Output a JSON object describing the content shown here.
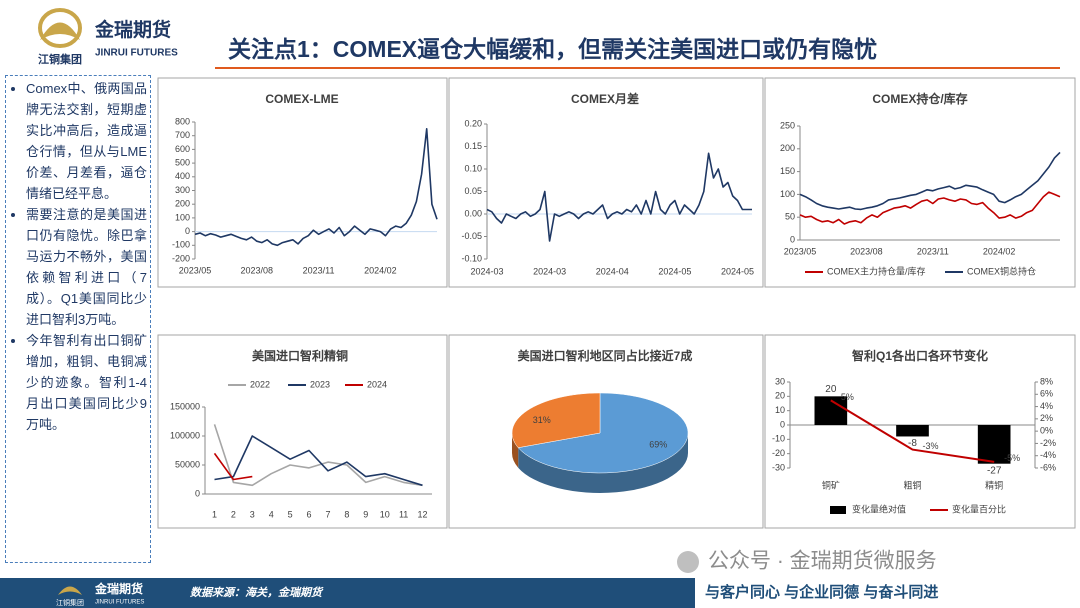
{
  "header": {
    "brand": "金瑞期货",
    "brand_en": "JINRUI FUTURES",
    "group": "江铜集团",
    "title": "关注点1：COMEX逼仓大幅缓和，但需关注美国进口或仍有隐忧"
  },
  "sidebar": {
    "bullets": [
      "Comex中、俄两国品牌无法交割，短期虚实比冲高后，造成逼仓行情，但从与LME价差、月差看，逼仓情绪已经平息。",
      "需要注意的是美国进口仍有隐忧。除巴拿马运力不畅外，美国依赖智利进口（7成）。Q1美国同比少进口智利3万吨。",
      "今年智利有出口铜矿增加，粗铜、电铜减少的迹象。智利1-4月出口美国同比少9万吨。"
    ]
  },
  "chart_data": [
    {
      "type": "line",
      "title": "COMEX-LME",
      "categories": [
        "2023/05",
        null,
        null,
        null,
        null,
        null,
        null,
        null,
        null,
        null,
        null,
        null,
        "2023/08",
        null,
        null,
        null,
        null,
        null,
        null,
        null,
        null,
        null,
        null,
        null,
        "2023/11",
        null,
        null,
        null,
        null,
        null,
        null,
        null,
        null,
        null,
        null,
        null,
        "2024/02",
        null,
        null,
        null,
        null,
        null,
        null,
        null,
        null,
        null,
        null,
        null
      ],
      "series": [
        {
          "color": "#1f3864",
          "values": [
            -20,
            -10,
            -30,
            -15,
            -25,
            -40,
            -30,
            -20,
            -35,
            -50,
            -60,
            -40,
            -70,
            -80,
            -60,
            -90,
            -100,
            -80,
            -70,
            -60,
            -90,
            -50,
            -30,
            10,
            -20,
            0,
            20,
            -10,
            30,
            -30,
            0,
            40,
            10,
            -20,
            20,
            10,
            0,
            -30,
            20,
            40,
            30,
            60,
            120,
            220,
            420,
            750,
            200,
            90
          ]
        }
      ],
      "ylim": [
        -200,
        800
      ],
      "yticks": [
        -200,
        -100,
        0,
        100,
        200,
        300,
        400,
        500,
        600,
        700,
        800
      ],
      "grid": false
    },
    {
      "type": "line",
      "title": "COMEX月差",
      "categories": [
        "2024-03",
        null,
        null,
        null,
        null,
        null,
        null,
        null,
        null,
        null,
        null,
        null,
        null,
        "2024-03",
        null,
        null,
        null,
        null,
        null,
        null,
        null,
        null,
        null,
        null,
        null,
        null,
        "2024-04",
        null,
        null,
        null,
        null,
        null,
        null,
        null,
        null,
        null,
        null,
        null,
        null,
        "2024-05",
        null,
        null,
        null,
        null,
        null,
        null,
        null,
        null,
        null,
        null,
        null,
        null,
        "2024-05",
        null,
        null,
        null
      ],
      "series": [
        {
          "color": "#1f3864",
          "values": [
            0.01,
            0.005,
            -0.01,
            -0.02,
            0,
            -0.005,
            -0.01,
            0,
            0.005,
            -0.005,
            0,
            0.01,
            0.05,
            -0.06,
            0,
            -0.005,
            0,
            0.005,
            0,
            -0.01,
            0,
            0.005,
            0,
            0.01,
            0.02,
            -0.01,
            0,
            0.005,
            0,
            0.01,
            0.005,
            0.02,
            0,
            0.03,
            0,
            0.05,
            0.01,
            0,
            0.02,
            0.03,
            0,
            0.02,
            0.01,
            0,
            0.02,
            0.05,
            0.135,
            0.08,
            0.1,
            0.06,
            0.07,
            0.04,
            0.03,
            0.01,
            0.01,
            0.01
          ]
        }
      ],
      "ylim": [
        -0.1,
        0.2
      ],
      "yticks": [
        {
          "value": -0.1,
          "label": "-0.10"
        },
        {
          "value": -0.05,
          "label": "-0.05"
        },
        {
          "value": 0,
          "label": "0.00"
        },
        {
          "value": 0.05,
          "label": "0.05"
        },
        {
          "value": 0.1,
          "label": "0.10"
        },
        {
          "value": 0.15,
          "label": "0.15"
        },
        {
          "value": 0.2,
          "label": "0.20"
        }
      ],
      "grid": false
    },
    {
      "type": "line",
      "title": "COMEX持仓/库存",
      "categories": [
        "2023/05",
        null,
        null,
        null,
        null,
        null,
        null,
        null,
        null,
        null,
        null,
        null,
        "2023/08",
        null,
        null,
        null,
        null,
        null,
        null,
        null,
        null,
        null,
        null,
        null,
        "2023/11",
        null,
        null,
        null,
        null,
        null,
        null,
        null,
        null,
        null,
        null,
        null,
        "2024/02",
        null,
        null,
        null,
        null,
        null,
        null,
        null,
        null,
        null,
        null,
        null
      ],
      "series": [
        {
          "name": "COMEX主力持仓量/库存",
          "color": "#c00000",
          "values": [
            55,
            50,
            52,
            45,
            40,
            42,
            38,
            45,
            35,
            40,
            42,
            38,
            48,
            55,
            50,
            60,
            65,
            70,
            72,
            75,
            70,
            78,
            85,
            88,
            80,
            90,
            92,
            88,
            85,
            90,
            88,
            80,
            78,
            82,
            70,
            60,
            48,
            50,
            55,
            48,
            52,
            60,
            65,
            80,
            95,
            105,
            100,
            95
          ]
        },
        {
          "name": "COMEX铜总持仓",
          "color": "#1f3864",
          "values": [
            100,
            95,
            88,
            80,
            75,
            72,
            70,
            68,
            70,
            72,
            68,
            67,
            70,
            72,
            75,
            80,
            88,
            90,
            92,
            95,
            98,
            100,
            105,
            110,
            108,
            112,
            115,
            118,
            112,
            115,
            120,
            118,
            116,
            110,
            105,
            100,
            85,
            82,
            88,
            95,
            100,
            110,
            120,
            130,
            145,
            160,
            180,
            192
          ]
        }
      ],
      "ylim": [
        0,
        250
      ],
      "yticks": [
        0,
        50,
        100,
        150,
        200,
        250
      ],
      "grid": false,
      "legend": "bottom"
    },
    {
      "type": "line",
      "title": "美国进口智利精铜",
      "x": [
        1,
        2,
        3,
        4,
        5,
        6,
        7,
        8,
        9,
        10,
        11,
        12
      ],
      "xlim": [
        0.5,
        12.5
      ],
      "xticks": [
        1,
        2,
        3,
        4,
        5,
        6,
        7,
        8,
        9,
        10,
        11,
        12
      ],
      "series": [
        {
          "name": "2022",
          "color": "#a6a6a6",
          "values": [
            120000,
            20000,
            15000,
            35000,
            50000,
            45000,
            55000,
            50000,
            20000,
            30000,
            20000,
            15000
          ]
        },
        {
          "name": "2023",
          "color": "#1f3864",
          "values": [
            25000,
            30000,
            100000,
            80000,
            60000,
            75000,
            40000,
            55000,
            30000,
            35000,
            25000,
            15000
          ]
        },
        {
          "name": "2024",
          "color": "#c00000",
          "values": [
            70000,
            25000,
            30000,
            null,
            null,
            null,
            null,
            null,
            null,
            null,
            null,
            null
          ]
        }
      ],
      "ylim": [
        0,
        150000
      ],
      "yticks": [
        0,
        50000,
        100000,
        150000
      ],
      "grid": false,
      "legend": "top"
    },
    {
      "type": "pie",
      "title": "美国进口智利地区同占比接近7成",
      "values": [
        69,
        31
      ],
      "value_labels": [
        "69%",
        "31%"
      ],
      "colors": [
        "#5b9bd5",
        "#ed7d31"
      ]
    },
    {
      "type": "combo",
      "title": "智利Q1各出口各环节变化",
      "categories": [
        "铜矿",
        "粗铜",
        "精铜"
      ],
      "series": [
        {
          "name": "变化量绝对值",
          "type": "bar",
          "color": "#000000",
          "values": [
            20,
            -8,
            -27
          ]
        },
        {
          "name": "变化量百分比",
          "type": "line",
          "axis": "y2",
          "color": "#c00000",
          "values": [
            5,
            -3,
            -5
          ],
          "value_labels": [
            "5%",
            "-3%",
            "-5%"
          ]
        }
      ],
      "ylim": [
        -30,
        30
      ],
      "yticks": [
        -30,
        -20,
        -10,
        0,
        10,
        20,
        30
      ],
      "y2lim": [
        -6,
        8
      ],
      "y2ticks": [
        {
          "value": -6,
          "label": "-6%"
        },
        {
          "value": -4,
          "label": "-4%"
        },
        {
          "value": -2,
          "label": "-2%"
        },
        {
          "value": 0,
          "label": "0%"
        },
        {
          "value": 2,
          "label": "2%"
        },
        {
          "value": 4,
          "label": "4%"
        },
        {
          "value": 6,
          "label": "6%"
        },
        {
          "value": 8,
          "label": "8%"
        }
      ],
      "grid": false,
      "legend": "bottom"
    }
  ],
  "footer": {
    "source": "数据来源：海关，金瑞期货",
    "slogan": "与客户同心 与企业同德 与奋斗同进",
    "watermark": "公众号 · 金瑞期货微服务"
  }
}
